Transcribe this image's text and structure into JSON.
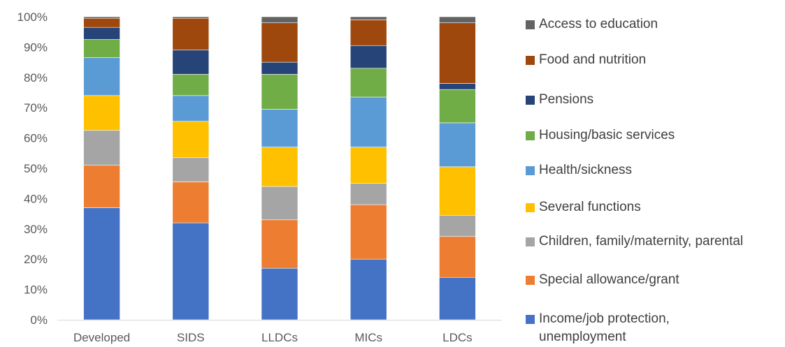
{
  "chart_data": {
    "type": "bar",
    "stacked": true,
    "percent": true,
    "title": "",
    "xlabel": "",
    "ylabel": "",
    "ylim": [
      0,
      100
    ],
    "yticks": [
      "0%",
      "10%",
      "20%",
      "30%",
      "40%",
      "50%",
      "60%",
      "70%",
      "80%",
      "90%",
      "100%"
    ],
    "grid": false,
    "legend_position": "right",
    "categories": [
      "Developed",
      "SIDS",
      "LLDCs",
      "MICs",
      "LDCs"
    ],
    "series": [
      {
        "name": "Income/job protection, unemployment",
        "color": "#4472C4",
        "values": [
          37,
          32,
          17,
          20,
          14
        ]
      },
      {
        "name": "Special allowance/grant",
        "color": "#ED7D31",
        "values": [
          14,
          13.5,
          16,
          18,
          13.5
        ]
      },
      {
        "name": "Children, family/maternity, parental",
        "color": "#A5A5A5",
        "values": [
          11.5,
          8,
          11,
          7,
          7
        ]
      },
      {
        "name": "Several functions",
        "color": "#FFC000",
        "values": [
          11.5,
          12,
          13,
          12,
          16
        ]
      },
      {
        "name": "Health/sickness",
        "color": "#5B9BD5",
        "values": [
          12.5,
          8.5,
          12.5,
          16.5,
          14.5
        ]
      },
      {
        "name": "Housing/basic services",
        "color": "#70AD47",
        "values": [
          6,
          7,
          11.5,
          9.5,
          11
        ]
      },
      {
        "name": "Pensions",
        "color": "#264478",
        "values": [
          4,
          8,
          4,
          7.5,
          2
        ]
      },
      {
        "name": "Food and nutrition",
        "color": "#9E480E",
        "values": [
          3,
          10.5,
          13,
          8.5,
          20
        ]
      },
      {
        "name": "Access to education",
        "color": "#636363",
        "values": [
          0.5,
          0.5,
          2,
          1,
          2
        ]
      }
    ]
  }
}
